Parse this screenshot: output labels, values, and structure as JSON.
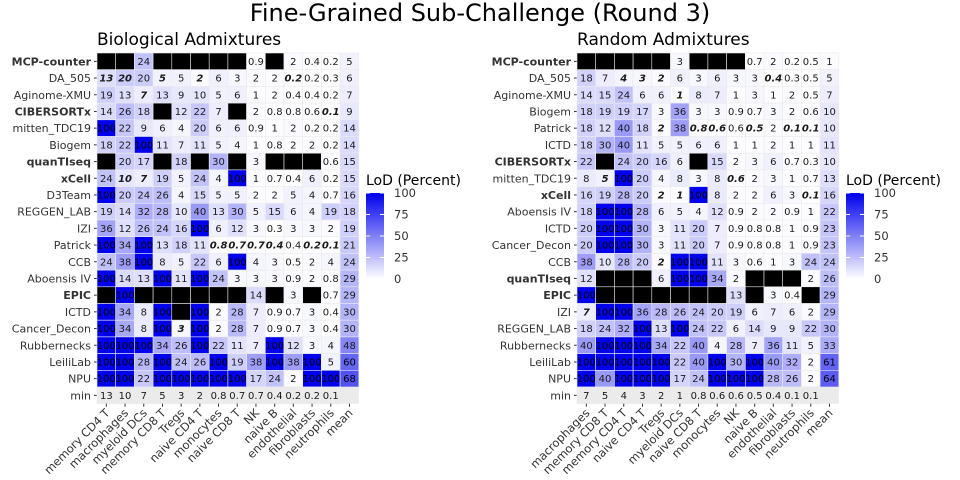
{
  "title": "Fine-Grained Sub-Challenge (Round 3)",
  "legend": {
    "title": "LoD (Percent)",
    "ticks": [
      100,
      75,
      50,
      25,
      0
    ]
  },
  "colors": {
    "low": "#ffffff",
    "high": "#0000ee",
    "na": "#000000",
    "text": "#1a1a1a"
  },
  "chart_data": [
    {
      "type": "heatmap",
      "title": "Biological Admixtures",
      "scale_range": [
        0,
        100
      ],
      "columns": [
        "memory CD4 T",
        "macrophages",
        "myeloid DCs",
        "memory CD8 T",
        "Tregs",
        "naive CD4 T",
        "monocytes",
        "naive CD8 T",
        "NK",
        "naive B",
        "endothelial",
        "fibroblasts",
        "neutrophils",
        "mean"
      ],
      "rows": [
        {
          "name": "MCP-counter",
          "bold": true,
          "values": [
            null,
            null,
            24,
            null,
            null,
            null,
            null,
            null,
            0.9,
            null,
            2,
            0.4,
            0.2,
            5
          ]
        },
        {
          "name": "DA_505",
          "bold": false,
          "values": [
            "13",
            "20",
            "20",
            "5",
            "5",
            "2",
            "6",
            "3",
            "2",
            "2",
            "0.2",
            "0.2",
            "0.3",
            "6"
          ],
          "emph": [
            0,
            1,
            3,
            5,
            10
          ]
        },
        {
          "name": "Aginome-XMU",
          "bold": false,
          "values": [
            19,
            13,
            7,
            13,
            9,
            10,
            5,
            6,
            1,
            2,
            0.4,
            0.4,
            0.2,
            7
          ],
          "emph": [
            2
          ]
        },
        {
          "name": "CIBERSORTx",
          "bold": true,
          "values": [
            14,
            26,
            18,
            null,
            12,
            22,
            7,
            null,
            2,
            0.8,
            0.8,
            0.6,
            0.1,
            9
          ],
          "emph": [
            12
          ]
        },
        {
          "name": "mitten_TDC19",
          "bold": false,
          "values": [
            100,
            22,
            9,
            6,
            4,
            20,
            6,
            6,
            0.9,
            1,
            2,
            0.2,
            0.2,
            14
          ]
        },
        {
          "name": "Biogem",
          "bold": false,
          "values": [
            18,
            22,
            100,
            11,
            7,
            11,
            5,
            4,
            1,
            0.8,
            2,
            2,
            0.2,
            14
          ]
        },
        {
          "name": "quanTIseq",
          "bold": true,
          "values": [
            null,
            20,
            17,
            null,
            18,
            null,
            30,
            null,
            3,
            null,
            null,
            null,
            0.6,
            15
          ]
        },
        {
          "name": "xCell",
          "bold": true,
          "values": [
            24,
            10,
            7,
            19,
            5,
            24,
            4,
            100,
            1,
            0.7,
            0.4,
            6,
            0.2,
            15
          ],
          "emph": [
            1,
            2
          ]
        },
        {
          "name": "D3Team",
          "bold": false,
          "values": [
            100,
            20,
            24,
            26,
            4,
            15,
            5,
            5,
            2,
            2,
            5,
            4,
            0.7,
            16
          ]
        },
        {
          "name": "REGGEN_LAB",
          "bold": false,
          "values": [
            19,
            14,
            32,
            28,
            10,
            40,
            13,
            30,
            5,
            15,
            6,
            4,
            19,
            18
          ]
        },
        {
          "name": "IZI",
          "bold": false,
          "values": [
            36,
            12,
            26,
            24,
            16,
            100,
            6,
            12,
            3,
            0.3,
            3,
            3,
            2,
            19
          ]
        },
        {
          "name": "Patrick",
          "bold": false,
          "values": [
            100,
            34,
            100,
            13,
            18,
            11,
            0.8,
            0.7,
            0.7,
            0.4,
            0.4,
            0.2,
            0.1,
            21
          ],
          "emph": [
            6,
            7,
            8,
            9,
            11,
            12
          ]
        },
        {
          "name": "CCB",
          "bold": false,
          "values": [
            24,
            38,
            100,
            8,
            5,
            22,
            6,
            100,
            4,
            3,
            0.5,
            2,
            4,
            24
          ]
        },
        {
          "name": "Aboensis IV",
          "bold": false,
          "values": [
            100,
            14,
            13,
            100,
            11,
            100,
            24,
            3,
            3,
            3,
            0.9,
            2,
            0.8,
            29
          ]
        },
        {
          "name": "EPIC",
          "bold": true,
          "values": [
            null,
            100,
            null,
            null,
            null,
            null,
            null,
            null,
            14,
            null,
            3,
            null,
            0.7,
            29
          ]
        },
        {
          "name": "ICTD",
          "bold": false,
          "values": [
            100,
            34,
            8,
            100,
            null,
            100,
            2,
            28,
            7,
            0.9,
            0.7,
            3,
            0.4,
            30
          ]
        },
        {
          "name": "Cancer_Decon",
          "bold": false,
          "values": [
            100,
            34,
            8,
            100,
            3,
            100,
            2,
            28,
            7,
            0.9,
            0.7,
            3,
            0.4,
            30
          ],
          "emph": [
            4
          ]
        },
        {
          "name": "Rubbernecks",
          "bold": false,
          "values": [
            100,
            100,
            100,
            34,
            26,
            100,
            22,
            11,
            7,
            100,
            12,
            3,
            4,
            48
          ]
        },
        {
          "name": "LeiliLab",
          "bold": false,
          "values": [
            100,
            100,
            28,
            100,
            24,
            26,
            100,
            19,
            38,
            100,
            38,
            100,
            5,
            60
          ]
        },
        {
          "name": "NPU",
          "bold": false,
          "values": [
            100,
            100,
            22,
            100,
            100,
            100,
            100,
            100,
            17,
            24,
            2,
            100,
            100,
            68
          ]
        },
        {
          "name": "min",
          "bold": false,
          "values": [
            13,
            10,
            7,
            5,
            3,
            2,
            0.8,
            0.7,
            0.7,
            0.4,
            0.2,
            0.2,
            0.1,
            null
          ]
        }
      ]
    },
    {
      "type": "heatmap",
      "title": "Random Admixtures",
      "scale_range": [
        0,
        100
      ],
      "columns": [
        "macrophages",
        "memory CD8 T",
        "memory CD4 T",
        "naive CD4 T",
        "Tregs",
        "myeloid DCs",
        "naive CD8 T",
        "monocytes",
        "NK",
        "naive B",
        "endothelial",
        "fibroblasts",
        "neutrophils",
        "mean"
      ],
      "rows": [
        {
          "name": "MCP-counter",
          "bold": true,
          "values": [
            null,
            null,
            null,
            null,
            null,
            3,
            null,
            null,
            null,
            0.7,
            2,
            0.2,
            0.5,
            1
          ]
        },
        {
          "name": "DA_505",
          "bold": false,
          "values": [
            18,
            7,
            4,
            3,
            2,
            6,
            3,
            6,
            3,
            3,
            0.4,
            0.3,
            0.5,
            5
          ],
          "emph": [
            2,
            3,
            4,
            10
          ]
        },
        {
          "name": "Aginome-XMU",
          "bold": false,
          "values": [
            14,
            15,
            24,
            6,
            6,
            1,
            8,
            7,
            1,
            3,
            1,
            2,
            0.5,
            7
          ],
          "emph": [
            5
          ]
        },
        {
          "name": "Biogem",
          "bold": false,
          "values": [
            18,
            19,
            19,
            17,
            3,
            36,
            3,
            3,
            0.9,
            0.7,
            3,
            2,
            0.6,
            10
          ]
        },
        {
          "name": "Patrick",
          "bold": false,
          "values": [
            18,
            12,
            40,
            18,
            2,
            38,
            0.8,
            0.6,
            0.6,
            0.5,
            2,
            0.1,
            0.1,
            10
          ],
          "emph": [
            4,
            6,
            7,
            9,
            11,
            12
          ]
        },
        {
          "name": "ICTD",
          "bold": false,
          "values": [
            18,
            30,
            40,
            11,
            5,
            5,
            6,
            6,
            1,
            1,
            2,
            1,
            1,
            11
          ]
        },
        {
          "name": "CIBERSORTx",
          "bold": true,
          "values": [
            22,
            null,
            24,
            20,
            16,
            6,
            null,
            15,
            2,
            3,
            6,
            0.7,
            0.3,
            10
          ]
        },
        {
          "name": "mitten_TDC19",
          "bold": false,
          "values": [
            8,
            5,
            100,
            20,
            4,
            8,
            3,
            8,
            0.6,
            2,
            3,
            1,
            0.7,
            13
          ],
          "emph": [
            1,
            8
          ]
        },
        {
          "name": "xCell",
          "bold": true,
          "values": [
            16,
            19,
            28,
            20,
            2,
            1,
            100,
            8,
            2,
            2,
            6,
            3,
            0.1,
            16
          ],
          "emph": [
            4,
            5,
            12
          ]
        },
        {
          "name": "Aboensis IV",
          "bold": false,
          "values": [
            18,
            100,
            100,
            28,
            6,
            5,
            4,
            12,
            0.9,
            2,
            2,
            0.9,
            1,
            22
          ]
        },
        {
          "name": "ICTD",
          "bold": false,
          "values": [
            20,
            100,
            100,
            30,
            3,
            11,
            20,
            7,
            0.9,
            0.8,
            0.8,
            1,
            0.9,
            23
          ]
        },
        {
          "name": "Cancer_Decon",
          "bold": false,
          "values": [
            20,
            100,
            100,
            30,
            3,
            11,
            20,
            7,
            0.9,
            0.8,
            0.8,
            1,
            0.9,
            23
          ]
        },
        {
          "name": "CCB",
          "bold": false,
          "values": [
            38,
            10,
            28,
            20,
            2,
            100,
            100,
            11,
            3,
            0.6,
            1,
            3,
            24,
            24
          ],
          "emph": [
            4
          ]
        },
        {
          "name": "quanTIseq",
          "bold": true,
          "values": [
            12,
            null,
            null,
            null,
            6,
            100,
            100,
            34,
            2,
            null,
            null,
            null,
            2,
            26
          ]
        },
        {
          "name": "EPIC",
          "bold": true,
          "values": [
            100,
            null,
            null,
            null,
            null,
            null,
            null,
            null,
            13,
            null,
            3,
            0.4,
            null,
            29
          ]
        },
        {
          "name": "IZI",
          "bold": false,
          "values": [
            7,
            100,
            100,
            36,
            28,
            26,
            24,
            20,
            19,
            6,
            7,
            6,
            2,
            29
          ],
          "emph": [
            0
          ]
        },
        {
          "name": "REGGEN_LAB",
          "bold": false,
          "values": [
            18,
            24,
            32,
            100,
            13,
            100,
            24,
            22,
            6,
            14,
            9,
            9,
            22,
            30
          ]
        },
        {
          "name": "Rubbernecks",
          "bold": false,
          "values": [
            40,
            100,
            100,
            100,
            34,
            22,
            40,
            4,
            28,
            7,
            36,
            11,
            5,
            33
          ]
        },
        {
          "name": "LeiliLab",
          "bold": false,
          "values": [
            100,
            100,
            100,
            100,
            100,
            22,
            40,
            100,
            30,
            100,
            40,
            32,
            2,
            61
          ]
        },
        {
          "name": "NPU",
          "bold": false,
          "values": [
            100,
            40,
            100,
            100,
            100,
            17,
            24,
            100,
            100,
            100,
            28,
            26,
            2,
            64
          ]
        },
        {
          "name": "min",
          "bold": false,
          "values": [
            7,
            5,
            4,
            3,
            2,
            1,
            0.8,
            0.6,
            0.6,
            0.5,
            0.4,
            0.1,
            0.1,
            null
          ]
        }
      ]
    }
  ]
}
